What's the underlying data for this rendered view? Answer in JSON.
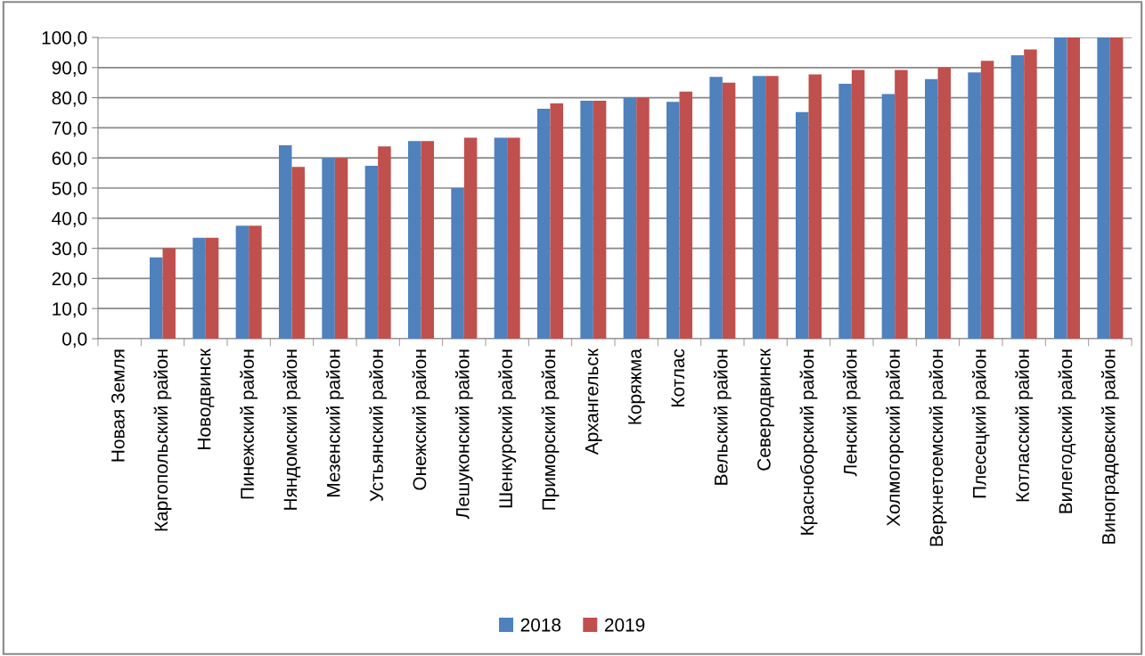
{
  "chart_data": {
    "type": "bar",
    "categories": [
      "Новая Земля",
      "Каргопольский район",
      "Новодвинск",
      "Пинежский район",
      "Няндомский район",
      "Мезенский район",
      "Устьянский район",
      "Онежский район",
      "Лешуконский район",
      "Шенкурский район",
      "Приморский район",
      "Архангельск",
      "Коряжма",
      "Котлас",
      "Вельский район",
      "Северодвинск",
      "Красноборский район",
      "Ленский район",
      "Холмогорский район",
      "Верхнетоемский район",
      "Плесецкий район",
      "Котласский район",
      "Вилегодский район",
      "Виноградовский район"
    ],
    "series": [
      {
        "name": "2018",
        "color": "#4f81bd",
        "values": [
          0,
          27,
          33.5,
          37.5,
          64.2,
          60,
          57.4,
          65.6,
          50,
          66.7,
          76.3,
          79,
          80,
          78.6,
          86.9,
          87.2,
          75.2,
          84.6,
          81.2,
          86.2,
          88.4,
          94.1,
          100,
          100
        ]
      },
      {
        "name": "2019",
        "color": "#c0504d",
        "values": [
          0,
          30,
          33.5,
          37.5,
          57,
          60,
          63.8,
          65.6,
          66.7,
          66.7,
          78.1,
          79,
          80,
          82,
          85,
          87.2,
          87.7,
          89.2,
          89.2,
          90,
          92.2,
          96,
          100,
          100
        ]
      }
    ],
    "ylim": [
      0,
      100
    ],
    "yticks": [
      {
        "value": 0,
        "label": "0,0"
      },
      {
        "value": 10,
        "label": "10,0"
      },
      {
        "value": 20,
        "label": "20,0"
      },
      {
        "value": 30,
        "label": "30,0"
      },
      {
        "value": 40,
        "label": "40,0"
      },
      {
        "value": 50,
        "label": "50,0"
      },
      {
        "value": 60,
        "label": "60,0"
      },
      {
        "value": 70,
        "label": "70,0"
      },
      {
        "value": 80,
        "label": "80,0"
      },
      {
        "value": 90,
        "label": "90,0"
      },
      {
        "value": 100,
        "label": "100,0"
      }
    ],
    "grid": "y",
    "legend": "bottom"
  }
}
